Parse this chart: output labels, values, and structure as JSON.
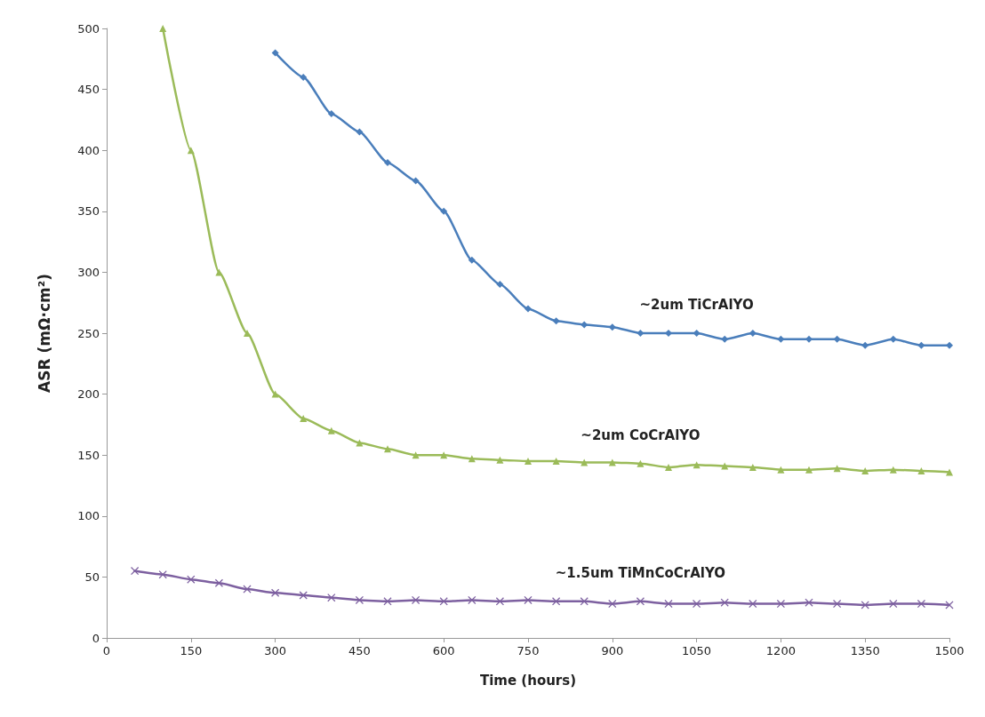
{
  "chart_data": {
    "type": "line",
    "xlabel": "Time (hours)",
    "ylabel": "ASR (mΩ·cm²)",
    "xlim": [
      0,
      1500
    ],
    "xticks": [
      0,
      150,
      300,
      450,
      600,
      750,
      900,
      1050,
      1200,
      1350,
      1500
    ],
    "ylim": [
      0,
      500
    ],
    "yticks": [
      0,
      50,
      100,
      150,
      200,
      250,
      300,
      350,
      400,
      450,
      500
    ],
    "grid": false,
    "legend": false,
    "line_style": "solid",
    "series": [
      {
        "name": "~2um TiCrAlYO",
        "color": "#4a7ebb",
        "marker": "diamond",
        "x": [
          300,
          350,
          400,
          450,
          500,
          550,
          600,
          650,
          700,
          750,
          800,
          850,
          900,
          950,
          1000,
          1050,
          1100,
          1150,
          1200,
          1250,
          1300,
          1350,
          1400,
          1450,
          1500
        ],
        "values": [
          480,
          460,
          430,
          415,
          390,
          375,
          350,
          310,
          290,
          270,
          260,
          257,
          255,
          250,
          250,
          250,
          245,
          250,
          245,
          245,
          245,
          240,
          245,
          240,
          240
        ]
      },
      {
        "name": "~2um CoCrAlYO",
        "color": "#9bbb59",
        "marker": "triangle",
        "x": [
          100,
          150,
          200,
          250,
          300,
          350,
          400,
          450,
          500,
          550,
          600,
          650,
          700,
          750,
          800,
          850,
          900,
          950,
          1000,
          1050,
          1100,
          1150,
          1200,
          1250,
          1300,
          1350,
          1400,
          1450,
          1500
        ],
        "values": [
          500,
          400,
          300,
          250,
          200,
          180,
          170,
          160,
          155,
          150,
          150,
          147,
          146,
          145,
          145,
          144,
          144,
          143,
          140,
          142,
          141,
          140,
          138,
          138,
          139,
          137,
          138,
          137,
          136
        ]
      },
      {
        "name": "~1.5um TiMnCoCrAlYO",
        "color": "#7d60a0",
        "marker": "cross",
        "x": [
          50,
          100,
          150,
          200,
          250,
          300,
          350,
          400,
          450,
          500,
          550,
          600,
          650,
          700,
          750,
          800,
          850,
          900,
          950,
          1000,
          1050,
          1100,
          1150,
          1200,
          1250,
          1300,
          1350,
          1400,
          1450,
          1500
        ],
        "values": [
          55,
          52,
          48,
          45,
          40,
          37,
          35,
          33,
          31,
          30,
          31,
          30,
          31,
          30,
          31,
          30,
          30,
          28,
          30,
          28,
          28,
          29,
          28,
          28,
          29,
          28,
          27,
          28,
          28,
          27
        ]
      }
    ]
  }
}
